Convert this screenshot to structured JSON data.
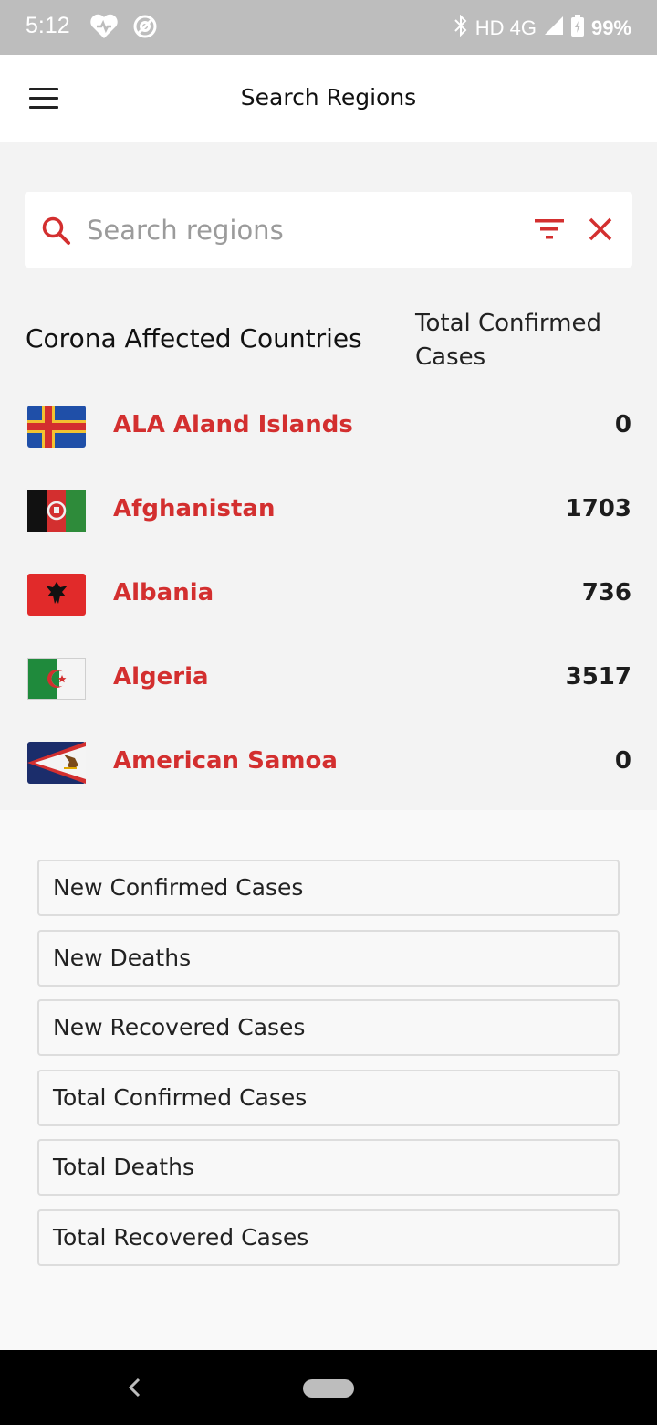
{
  "status_bar": {
    "time": "5:12",
    "network": "HD 4G",
    "battery": "99%",
    "icons": [
      "heart-icon",
      "at-sign-icon",
      "bluetooth-icon",
      "signal-icon",
      "battery-icon"
    ]
  },
  "app_bar": {
    "title": "Search Regions",
    "menu_icon": "hamburger-menu-icon"
  },
  "search": {
    "placeholder": "Search regions",
    "value": "",
    "icons": [
      "search-icon",
      "filter-icon",
      "clear-icon"
    ]
  },
  "list": {
    "heading": "Corona Affected Countries",
    "column_heading": "Total Confirmed Cases",
    "countries": [
      {
        "name": "ALA Aland Islands",
        "count": "0",
        "flag": "aland-flag-icon"
      },
      {
        "name": "Afghanistan",
        "count": "1703",
        "flag": "afghanistan-flag-icon"
      },
      {
        "name": "Albania",
        "count": "736",
        "flag": "albania-flag-icon"
      },
      {
        "name": "Algeria",
        "count": "3517",
        "flag": "algeria-flag-icon"
      },
      {
        "name": "American Samoa",
        "count": "0",
        "flag": "american-samoa-flag-icon"
      }
    ]
  },
  "filter_options": [
    "New Confirmed Cases",
    "New Deaths",
    "New Recovered Cases",
    "Total Confirmed Cases",
    "Total Deaths",
    "Total Recovered Cases"
  ],
  "colors": {
    "accent": "#d32f2f",
    "app_bar": "#ffffff",
    "background": "#f3f3f3",
    "status_bar": "#bdbdbd"
  }
}
